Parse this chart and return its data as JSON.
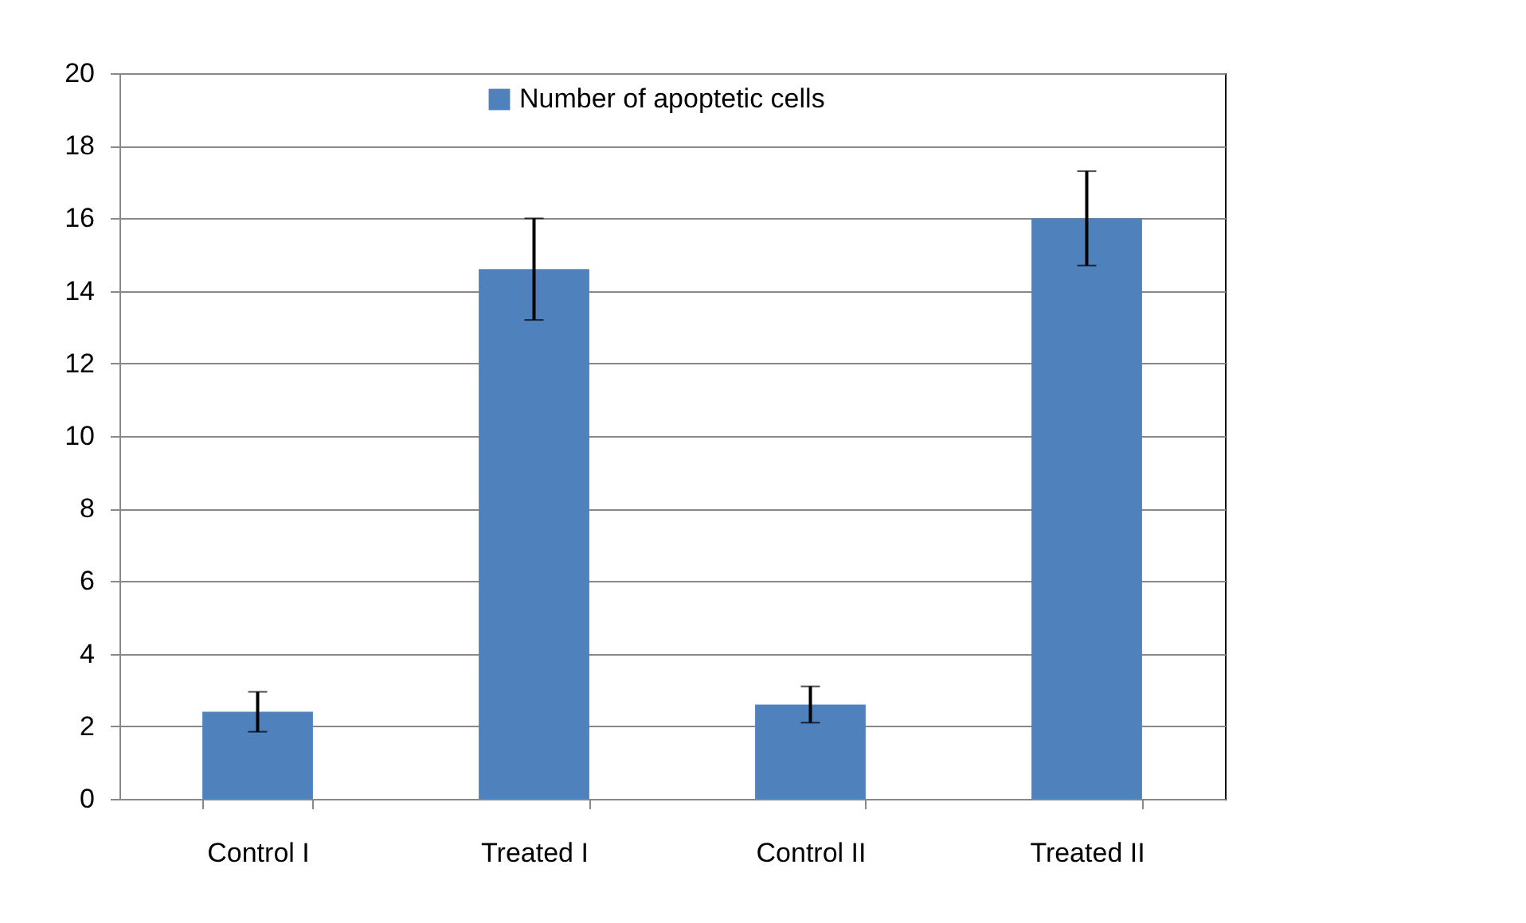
{
  "chart_data": {
    "type": "bar",
    "categories": [
      "Control I",
      "Treated I",
      "Control II",
      "Treated II"
    ],
    "series": [
      {
        "name": "Number of apoptetic cells",
        "color": "#4f81bd",
        "values": [
          2.4,
          14.6,
          2.6,
          16.0
        ],
        "errors": [
          0.55,
          1.4,
          0.5,
          1.3
        ]
      }
    ],
    "ylim": [
      0,
      20
    ],
    "yticks": [
      0,
      2,
      4,
      6,
      8,
      10,
      12,
      14,
      16,
      18,
      20
    ],
    "grid": "y",
    "legend": "top"
  }
}
